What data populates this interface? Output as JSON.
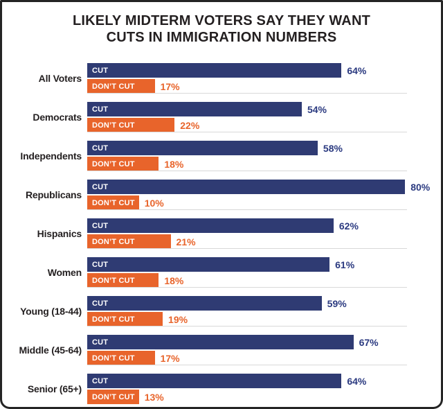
{
  "title": {
    "line1": "LIKELY MIDTERM VOTERS SAY THEY WANT",
    "line2": "CUTS IN IMMIGRATION NUMBERS"
  },
  "chart_data": {
    "type": "bar",
    "orientation": "horizontal",
    "title": "LIKELY MIDTERM VOTERS SAY THEY WANT CUTS IN IMMIGRATION NUMBERS",
    "categories": [
      "All Voters",
      "Democrats",
      "Independents",
      "Republicans",
      "Hispanics",
      "Women",
      "Young (18-44)",
      "Middle (45-64)",
      "Senior (65+)"
    ],
    "series": [
      {
        "name": "CUT",
        "values": [
          64,
          54,
          58,
          80,
          62,
          61,
          59,
          67,
          64
        ],
        "color": "#2f3b73"
      },
      {
        "name": "DON’T CUT",
        "values": [
          17,
          22,
          18,
          10,
          21,
          18,
          19,
          17,
          13
        ],
        "color": "#e8642b"
      }
    ],
    "value_suffix": "%",
    "xlim": [
      0,
      100
    ],
    "grid": false,
    "legend_position": "labels-inside-bars",
    "value_labels": "right-of-bar"
  },
  "colors": {
    "navy": "#2f3b73",
    "navytext": "#2b3a80",
    "orange": "#e8642b",
    "ink": "#231f20",
    "sep": "#d8d8d8",
    "border": "#242424"
  }
}
